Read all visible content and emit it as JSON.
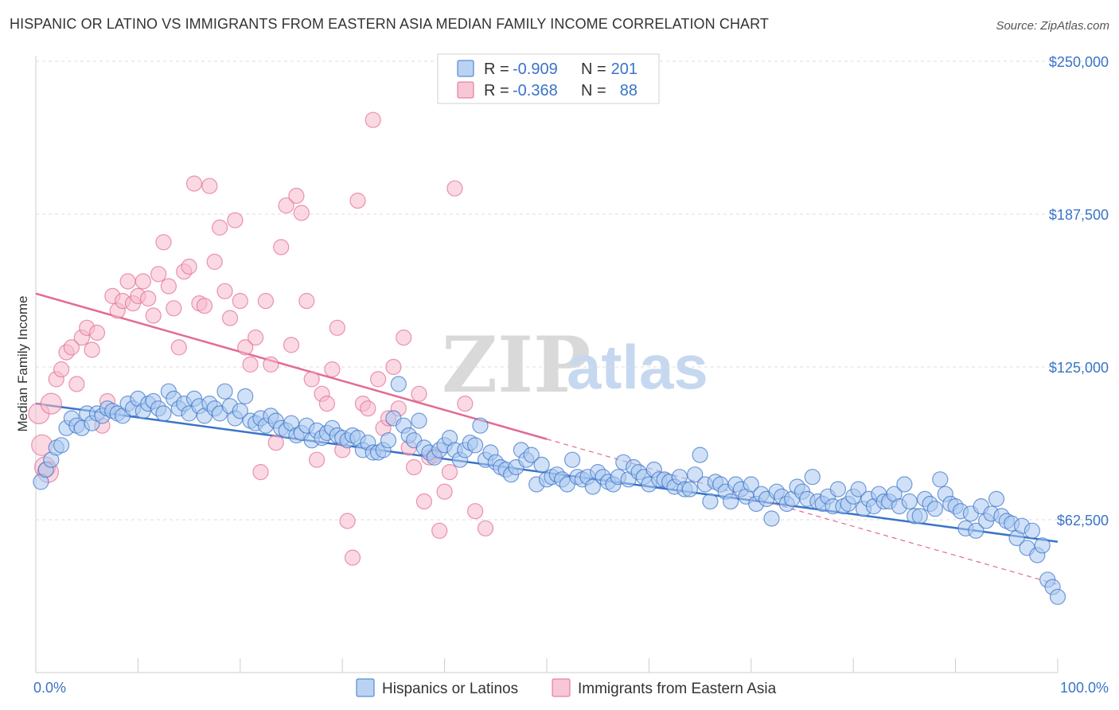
{
  "title": "HISPANIC OR LATINO VS IMMIGRANTS FROM EASTERN ASIA MEDIAN FAMILY INCOME CORRELATION CHART",
  "source": "Source: ZipAtlas.com",
  "watermark": {
    "zip": "ZIP",
    "atlas": "atlas"
  },
  "colors": {
    "blue": "#3a74c8",
    "blue_fill": "#aac8f0",
    "pink": "#e36a93",
    "pink_fill": "#f5b9cc"
  },
  "legend": {
    "r_label": "R =",
    "n_label": "N =",
    "series": [
      {
        "r": "-0.909",
        "n": "201"
      },
      {
        "r": "-0.368",
        "n": "88"
      }
    ]
  },
  "chart_data": {
    "type": "scatter",
    "xlabel": "",
    "ylabel": "Median Family Income",
    "x_tick_labels": [
      "0.0%",
      "100.0%"
    ],
    "xlim": [
      0,
      100
    ],
    "ylim": [
      0,
      262500
    ],
    "y_ticks": [
      62500,
      125000,
      187500,
      250000
    ],
    "y_tick_labels": [
      "$62,500",
      "$125,000",
      "$187,500",
      "$250,000"
    ],
    "grid": "horizontal dashed",
    "legend_position": "top-center",
    "series": [
      {
        "name": "Hispanics or Latinos",
        "trend": {
          "x0": 0,
          "y0": 110000,
          "x1": 100,
          "y1": 53500
        },
        "points": [
          [
            0.5,
            78000
          ],
          [
            1,
            83000
          ],
          [
            1.5,
            87000
          ],
          [
            2,
            92000
          ],
          [
            2.5,
            93000
          ],
          [
            3,
            100000
          ],
          [
            3.5,
            104000
          ],
          [
            4,
            101000
          ],
          [
            4.5,
            100000
          ],
          [
            5,
            106000
          ],
          [
            5.5,
            102000
          ],
          [
            6,
            106000
          ],
          [
            6.5,
            105000
          ],
          [
            7,
            108000
          ],
          [
            7.5,
            107000
          ],
          [
            8,
            106000
          ],
          [
            8.5,
            105000
          ],
          [
            9,
            110000
          ],
          [
            9.5,
            108000
          ],
          [
            10,
            112000
          ],
          [
            10.5,
            107000
          ],
          [
            11,
            110000
          ],
          [
            11.5,
            111000
          ],
          [
            12,
            108000
          ],
          [
            12.5,
            106000
          ],
          [
            13,
            115000
          ],
          [
            13.5,
            112000
          ],
          [
            14,
            108000
          ],
          [
            14.5,
            110000
          ],
          [
            15,
            106000
          ],
          [
            15.5,
            112000
          ],
          [
            16,
            109000
          ],
          [
            16.5,
            105000
          ],
          [
            17,
            110000
          ],
          [
            17.5,
            108000
          ],
          [
            18,
            106000
          ],
          [
            18.5,
            115000
          ],
          [
            19,
            109000
          ],
          [
            19.5,
            104000
          ],
          [
            20,
            107000
          ],
          [
            20.5,
            113000
          ],
          [
            21,
            103000
          ],
          [
            21.5,
            102000
          ],
          [
            22,
            104000
          ],
          [
            22.5,
            101000
          ],
          [
            23,
            105000
          ],
          [
            23.5,
            103000
          ],
          [
            24,
            100000
          ],
          [
            24.5,
            99000
          ],
          [
            25,
            102000
          ],
          [
            25.5,
            97000
          ],
          [
            26,
            98000
          ],
          [
            26.5,
            101000
          ],
          [
            27,
            95000
          ],
          [
            27.5,
            99000
          ],
          [
            28,
            96000
          ],
          [
            28.5,
            98000
          ],
          [
            29,
            100000
          ],
          [
            29.5,
            97000
          ],
          [
            30,
            96000
          ],
          [
            30.5,
            95000
          ],
          [
            31,
            97000
          ],
          [
            31.5,
            96000
          ],
          [
            32,
            91000
          ],
          [
            32.5,
            94000
          ],
          [
            33,
            90000
          ],
          [
            33.5,
            90000
          ],
          [
            34,
            91000
          ],
          [
            34.5,
            95000
          ],
          [
            35,
            104000
          ],
          [
            35.5,
            118000
          ],
          [
            36,
            101000
          ],
          [
            36.5,
            97000
          ],
          [
            37,
            95000
          ],
          [
            37.5,
            103000
          ],
          [
            38,
            92000
          ],
          [
            38.5,
            90000
          ],
          [
            39,
            88000
          ],
          [
            39.5,
            91000
          ],
          [
            40,
            93000
          ],
          [
            40.5,
            96000
          ],
          [
            41,
            91000
          ],
          [
            41.5,
            87000
          ],
          [
            42,
            91000
          ],
          [
            42.5,
            94000
          ],
          [
            43,
            93000
          ],
          [
            43.5,
            101000
          ],
          [
            44,
            87000
          ],
          [
            44.5,
            90000
          ],
          [
            45,
            86000
          ],
          [
            45.5,
            84000
          ],
          [
            46,
            83000
          ],
          [
            46.5,
            81000
          ],
          [
            47,
            84000
          ],
          [
            47.5,
            91000
          ],
          [
            48,
            87000
          ],
          [
            48.5,
            89000
          ],
          [
            49,
            77000
          ],
          [
            49.5,
            85000
          ],
          [
            50,
            79000
          ],
          [
            50.5,
            80000
          ],
          [
            51,
            81000
          ],
          [
            51.5,
            79000
          ],
          [
            52,
            77000
          ],
          [
            52.5,
            87000
          ],
          [
            53,
            80000
          ],
          [
            53.5,
            79000
          ],
          [
            54,
            80000
          ],
          [
            54.5,
            76000
          ],
          [
            55,
            82000
          ],
          [
            55.5,
            80000
          ],
          [
            56,
            78000
          ],
          [
            56.5,
            77000
          ],
          [
            57,
            80000
          ],
          [
            57.5,
            86000
          ],
          [
            58,
            79000
          ],
          [
            58.5,
            84000
          ],
          [
            59,
            82000
          ],
          [
            59.5,
            80000
          ],
          [
            60,
            77000
          ],
          [
            60.5,
            83000
          ],
          [
            61,
            79000
          ],
          [
            61.5,
            79000
          ],
          [
            62,
            78000
          ],
          [
            62.5,
            76000
          ],
          [
            63,
            80000
          ],
          [
            63.5,
            75000
          ],
          [
            64,
            75000
          ],
          [
            64.5,
            81000
          ],
          [
            65,
            89000
          ],
          [
            65.5,
            77000
          ],
          [
            66,
            70000
          ],
          [
            66.5,
            78000
          ],
          [
            67,
            77000
          ],
          [
            67.5,
            74000
          ],
          [
            68,
            70000
          ],
          [
            68.5,
            77000
          ],
          [
            69,
            75000
          ],
          [
            69.5,
            72000
          ],
          [
            70,
            77000
          ],
          [
            70.5,
            69000
          ],
          [
            71,
            73000
          ],
          [
            71.5,
            71000
          ],
          [
            72,
            63000
          ],
          [
            72.5,
            74000
          ],
          [
            73,
            72000
          ],
          [
            73.5,
            69000
          ],
          [
            74,
            71000
          ],
          [
            74.5,
            76000
          ],
          [
            75,
            74000
          ],
          [
            75.5,
            71000
          ],
          [
            76,
            80000
          ],
          [
            76.5,
            70000
          ],
          [
            77,
            69000
          ],
          [
            77.5,
            72000
          ],
          [
            78,
            68000
          ],
          [
            78.5,
            75000
          ],
          [
            79,
            68000
          ],
          [
            79.5,
            69000
          ],
          [
            80,
            72000
          ],
          [
            80.5,
            75000
          ],
          [
            81,
            67000
          ],
          [
            81.5,
            71000
          ],
          [
            82,
            68000
          ],
          [
            82.5,
            73000
          ],
          [
            83,
            70000
          ],
          [
            83.5,
            70000
          ],
          [
            84,
            73000
          ],
          [
            84.5,
            68000
          ],
          [
            85,
            77000
          ],
          [
            85.5,
            70000
          ],
          [
            86,
            64000
          ],
          [
            86.5,
            64000
          ],
          [
            87,
            71000
          ],
          [
            87.5,
            69000
          ],
          [
            88,
            67000
          ],
          [
            88.5,
            79000
          ],
          [
            89,
            73000
          ],
          [
            89.5,
            69000
          ],
          [
            90,
            68000
          ],
          [
            90.5,
            66000
          ],
          [
            91,
            59000
          ],
          [
            91.5,
            65000
          ],
          [
            92,
            58000
          ],
          [
            92.5,
            68000
          ],
          [
            93,
            62000
          ],
          [
            93.5,
            65000
          ],
          [
            94,
            71000
          ],
          [
            94.5,
            64000
          ],
          [
            95,
            62000
          ],
          [
            95.5,
            61000
          ],
          [
            96,
            55000
          ],
          [
            96.5,
            60000
          ],
          [
            97,
            51000
          ],
          [
            97.5,
            58000
          ],
          [
            98,
            48000
          ],
          [
            98.5,
            52000
          ],
          [
            99,
            38000
          ],
          [
            99.5,
            35000
          ],
          [
            100,
            31000
          ]
        ]
      },
      {
        "name": "Immigrants from Eastern Asia",
        "trend": {
          "x0": 0,
          "y0": 155000,
          "x1": 50,
          "y1": 95500
        },
        "trend_ext": {
          "x0": 50,
          "y0": 95500,
          "x1": 100,
          "y1": 36000
        },
        "points": [
          [
            0.3,
            106000
          ],
          [
            0.6,
            93000
          ],
          [
            0.9,
            84000
          ],
          [
            1.2,
            82000
          ],
          [
            1.5,
            110000
          ],
          [
            2,
            120000
          ],
          [
            2.5,
            124000
          ],
          [
            3,
            131000
          ],
          [
            3.5,
            133000
          ],
          [
            4,
            118000
          ],
          [
            4.5,
            137000
          ],
          [
            5,
            141000
          ],
          [
            5.5,
            132000
          ],
          [
            6,
            139000
          ],
          [
            6.5,
            101000
          ],
          [
            7,
            111000
          ],
          [
            7.5,
            154000
          ],
          [
            8,
            148000
          ],
          [
            8.5,
            152000
          ],
          [
            9,
            160000
          ],
          [
            9.5,
            151000
          ],
          [
            10,
            154000
          ],
          [
            10.5,
            160000
          ],
          [
            11,
            153000
          ],
          [
            11.5,
            146000
          ],
          [
            12,
            163000
          ],
          [
            12.5,
            176000
          ],
          [
            13,
            158000
          ],
          [
            13.5,
            149000
          ],
          [
            14,
            133000
          ],
          [
            14.5,
            164000
          ],
          [
            15,
            166000
          ],
          [
            15.5,
            200000
          ],
          [
            16,
            151000
          ],
          [
            16.5,
            150000
          ],
          [
            17,
            199000
          ],
          [
            17.5,
            168000
          ],
          [
            18,
            182000
          ],
          [
            18.5,
            156000
          ],
          [
            19,
            145000
          ],
          [
            19.5,
            185000
          ],
          [
            20,
            152000
          ],
          [
            20.5,
            133000
          ],
          [
            21,
            126000
          ],
          [
            21.5,
            137000
          ],
          [
            22,
            82000
          ],
          [
            22.5,
            152000
          ],
          [
            23,
            126000
          ],
          [
            23.5,
            94000
          ],
          [
            24,
            174000
          ],
          [
            24.5,
            191000
          ],
          [
            25,
            134000
          ],
          [
            25.5,
            195000
          ],
          [
            26,
            188000
          ],
          [
            26.5,
            152000
          ],
          [
            27,
            120000
          ],
          [
            27.5,
            87000
          ],
          [
            28,
            114000
          ],
          [
            28.5,
            110000
          ],
          [
            29,
            124000
          ],
          [
            29.5,
            141000
          ],
          [
            30,
            91000
          ],
          [
            30.5,
            62000
          ],
          [
            31,
            47000
          ],
          [
            31.5,
            193000
          ],
          [
            32,
            110000
          ],
          [
            32.5,
            108000
          ],
          [
            33,
            226000
          ],
          [
            33.5,
            120000
          ],
          [
            34,
            100000
          ],
          [
            34.5,
            104000
          ],
          [
            35,
            125000
          ],
          [
            35.5,
            108000
          ],
          [
            36,
            137000
          ],
          [
            36.5,
            92000
          ],
          [
            37,
            84000
          ],
          [
            37.5,
            114000
          ],
          [
            38,
            70000
          ],
          [
            38.5,
            88000
          ],
          [
            39,
            89000
          ],
          [
            39.5,
            58000
          ],
          [
            40,
            74000
          ],
          [
            40.5,
            82000
          ],
          [
            41,
            198000
          ],
          [
            42,
            110000
          ],
          [
            43,
            66000
          ],
          [
            44,
            59000
          ]
        ]
      }
    ]
  }
}
